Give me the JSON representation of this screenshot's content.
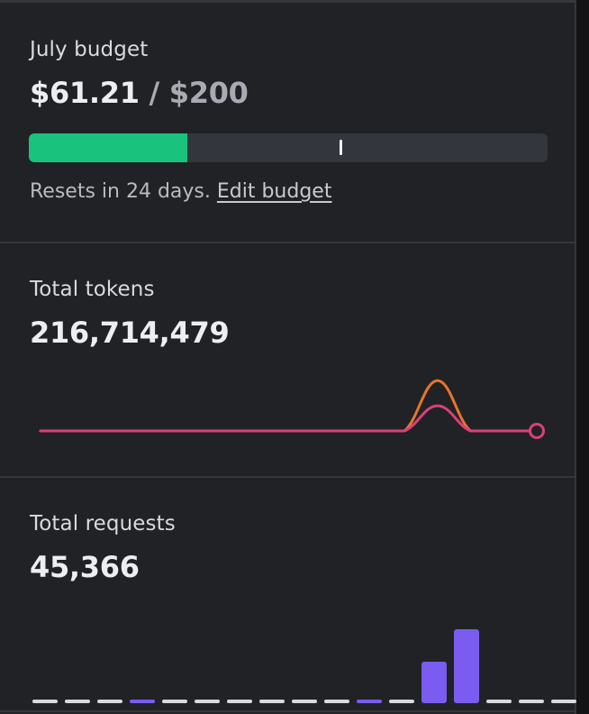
{
  "budget": {
    "label": "July budget",
    "spent": "$61.21",
    "separator": "/",
    "limit": "$200",
    "progress_fraction": 0.306,
    "marker_fraction": 0.6,
    "resets_text": "Resets in 24 days.",
    "edit_link": "Edit budget"
  },
  "tokens": {
    "label": "Total tokens",
    "total": "216,714,479"
  },
  "requests": {
    "label": "Total requests",
    "total": "45,366"
  },
  "colors": {
    "progress_fill": "#19c37d",
    "line_pink": "#d9407a",
    "line_orange": "#e8742e",
    "bar_purple": "#7a5cf0",
    "bar_empty": "#d9dae0"
  },
  "chart_data": [
    {
      "type": "line",
      "title": "",
      "series": [
        {
          "values": [
            0,
            0,
            0,
            0,
            0,
            0,
            0,
            0,
            0,
            0,
            0,
            0,
            0.9,
            0,
            0,
            0
          ]
        },
        {
          "values": [
            0,
            0,
            0,
            0,
            0,
            0,
            0,
            0,
            0,
            0,
            0,
            0,
            0.45,
            0,
            0,
            0
          ]
        }
      ]
    },
    {
      "type": "bar",
      "title": "",
      "values": [
        0,
        0,
        0,
        0.02,
        0,
        0,
        0,
        0,
        0,
        0,
        0.02,
        0,
        0.56,
        1.0,
        0,
        0,
        0
      ]
    }
  ]
}
